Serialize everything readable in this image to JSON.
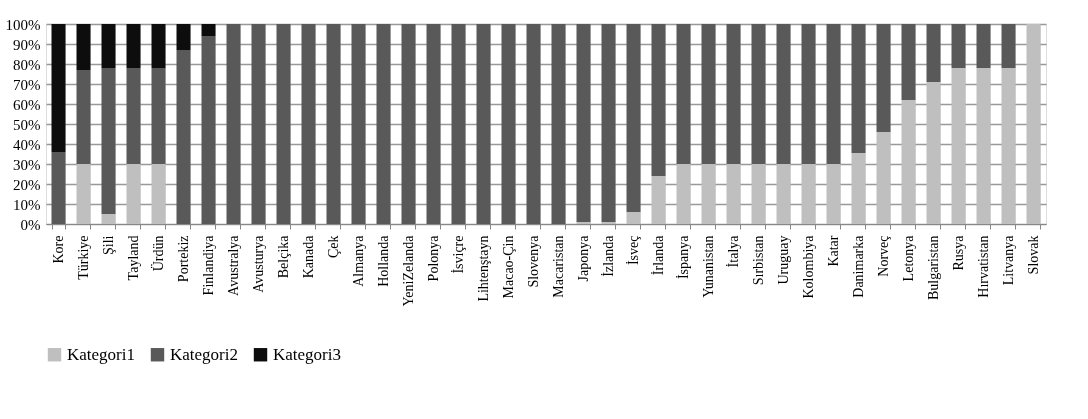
{
  "chart_data": {
    "type": "bar",
    "stacked": true,
    "categories": [
      "Kore",
      "Türkiye",
      "Şili",
      "Tayland",
      "Ürdün",
      "Portekiz",
      "Finlandiya",
      "Avustralya",
      "Avusturya",
      "Belçika",
      "Kanada",
      "Çek",
      "Almanya",
      "Hollanda",
      "YeniZelanda",
      "Polonya",
      "İsviçre",
      "Lihtenştayn",
      "Macao-Çin",
      "Slovenya",
      "Macaristan",
      "Japonya",
      "İzlanda",
      "İsveç",
      "İrlanda",
      "İspanya",
      "Yunanistan",
      "İtalya",
      "Sırbistan",
      "Uruguay",
      "Kolombiya",
      "Katar",
      "Danimarka",
      "Norveç",
      "Letonya",
      "Bulgaristan",
      "Rusya",
      "Hırvatistan",
      "Litvanya",
      "Slovak"
    ],
    "series": [
      {
        "name": "Kategori1",
        "color": "#bfbfbf",
        "values": [
          0,
          30,
          5,
          30,
          30,
          0,
          0,
          0,
          0,
          0,
          0,
          0,
          0,
          0,
          0,
          0,
          0,
          0,
          0,
          0,
          0,
          1,
          1,
          6,
          24,
          30,
          30,
          30,
          30,
          30,
          30,
          30,
          35.5,
          46,
          62,
          71,
          78,
          78,
          78,
          100
        ]
      },
      {
        "name": "Kategori2",
        "color": "#595959",
        "values": [
          36,
          47,
          73,
          48,
          48,
          87,
          94,
          100,
          100,
          100,
          100,
          100,
          100,
          100,
          100,
          100,
          100,
          100,
          100,
          100,
          100,
          99,
          99,
          94,
          76,
          70,
          70,
          70,
          70,
          70,
          70,
          70,
          64.5,
          54,
          38,
          29,
          22,
          22,
          22,
          0
        ]
      },
      {
        "name": "Kategori3",
        "color": "#0d0d0d",
        "values": [
          64,
          23,
          22,
          22,
          22,
          13,
          6,
          0,
          0,
          0,
          0,
          0,
          0,
          0,
          0,
          0,
          0,
          0,
          0,
          0,
          0,
          0,
          0,
          0,
          0,
          0,
          0,
          0,
          0,
          0,
          0,
          0,
          0,
          0,
          0,
          0,
          0,
          0,
          0,
          0
        ]
      }
    ],
    "ylim": [
      0,
      100
    ],
    "yticks": [
      {
        "value": 0,
        "label": "0%"
      },
      {
        "value": 10,
        "label": "10%"
      },
      {
        "value": 20,
        "label": "20%"
      },
      {
        "value": 30,
        "label": "30%"
      },
      {
        "value": 40,
        "label": "40%"
      },
      {
        "value": 50,
        "label": "50%"
      },
      {
        "value": 60,
        "label": "60%"
      },
      {
        "value": 70,
        "label": "70%"
      },
      {
        "value": 80,
        "label": "80%"
      },
      {
        "value": 90,
        "label": "90%"
      },
      {
        "value": 100,
        "label": "100%"
      }
    ],
    "grid": true,
    "legend": "bottom"
  }
}
